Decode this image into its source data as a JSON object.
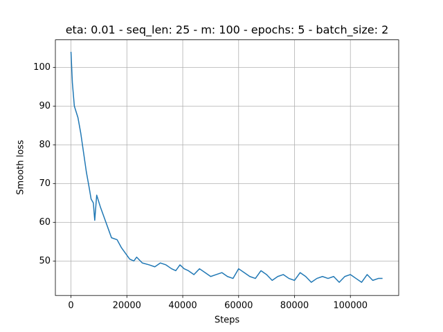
{
  "chart_data": {
    "type": "line",
    "title": "eta: 0.01 - seq_len: 25 - m: 100 - epochs: 5 - batch_size: 2",
    "x_label": "Steps",
    "y_label": "Smooth loss",
    "x": [
      0,
      500,
      1200,
      2500,
      3500,
      4500,
      5500,
      6500,
      7200,
      8000,
      8500,
      9200,
      10500,
      12000,
      13500,
      14500,
      16500,
      18000,
      19500,
      21000,
      22500,
      23500,
      25500,
      28000,
      30000,
      32000,
      34000,
      36000,
      37500,
      39000,
      40500,
      42000,
      44000,
      46000,
      48000,
      50000,
      52000,
      54000,
      56000,
      58000,
      60000,
      62000,
      64000,
      66000,
      68000,
      70000,
      72000,
      74000,
      76000,
      78000,
      80000,
      82000,
      84000,
      86000,
      88000,
      90000,
      92000,
      94000,
      96000,
      98000,
      100000,
      102000,
      104000,
      106000,
      108000,
      110000,
      111500
    ],
    "series": [
      {
        "name": "Smooth loss",
        "color": "#1f77b4",
        "values": [
          104,
          96,
          90,
          87,
          83,
          78,
          73,
          69,
          66,
          65,
          60.5,
          67,
          64,
          61,
          58,
          56,
          55.5,
          53.5,
          52,
          50.5,
          50,
          51,
          49.5,
          49,
          48.5,
          49.5,
          49,
          48,
          47.5,
          49,
          48,
          47.5,
          46.5,
          48,
          47,
          46,
          46.5,
          47,
          46,
          45.5,
          48,
          47,
          46,
          45.5,
          47.5,
          46.5,
          45,
          46,
          46.5,
          45.5,
          45,
          47,
          46,
          44.5,
          45.5,
          46,
          45.5,
          46,
          44.5,
          46,
          46.5,
          45.5,
          44.5,
          46.5,
          45,
          45.5,
          45.5
        ]
      }
    ],
    "xlim": [
      -5585,
      117285
    ],
    "ylim": [
      41.1,
      107.1
    ],
    "xticks": [
      0,
      20000,
      40000,
      60000,
      80000,
      100000
    ],
    "yticks": [
      50,
      60,
      70,
      80,
      90,
      100
    ],
    "grid": true
  }
}
